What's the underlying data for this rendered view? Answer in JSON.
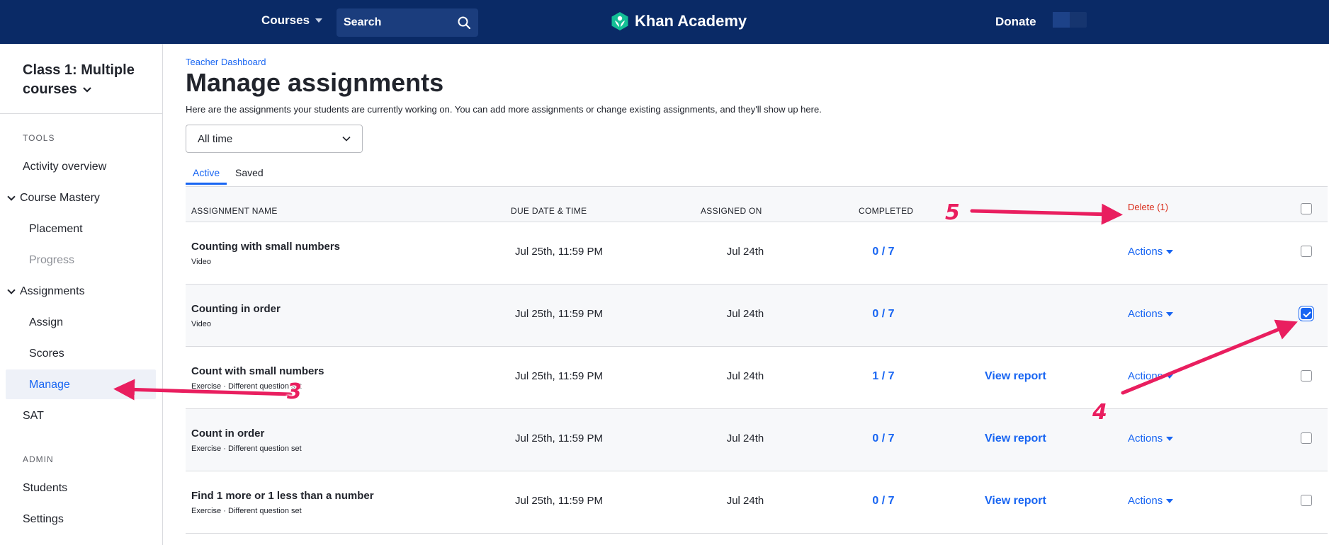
{
  "nav": {
    "courses_label": "Courses",
    "search_label": "Search",
    "brand": "Khan Academy",
    "donate_label": "Donate"
  },
  "sidebar": {
    "class_title": "Class 1: Multiple courses",
    "tools_heading": "TOOLS",
    "activity_overview": "Activity overview",
    "course_mastery": "Course Mastery",
    "placement": "Placement",
    "progress": "Progress",
    "assignments": "Assignments",
    "assign": "Assign",
    "scores": "Scores",
    "manage": "Manage",
    "sat": "SAT",
    "admin_heading": "ADMIN",
    "students": "Students",
    "settings": "Settings"
  },
  "main": {
    "breadcrumb": "Teacher Dashboard",
    "title": "Manage assignments",
    "description": "Here are the assignments your students are currently working on. You can add more assignments or change existing assignments, and they'll show up here.",
    "time_filter": "All time",
    "tabs": [
      "Active",
      "Saved"
    ],
    "columns": {
      "name": "Assignment name",
      "due": "Due date & time",
      "assigned": "Assigned on",
      "completed": "Completed"
    },
    "delete_label": "Delete (1)",
    "actions_label": "Actions",
    "view_report_label": "View report",
    "rows": [
      {
        "name": "Counting with small numbers",
        "type": "Video",
        "due": "Jul 25th, 11:59 PM",
        "assigned": "Jul 24th",
        "completed": "0 / 7"
      },
      {
        "name": "Counting in order",
        "type": "Video",
        "due": "Jul 25th, 11:59 PM",
        "assigned": "Jul 24th",
        "completed": "0 / 7"
      },
      {
        "name": "Count with small numbers",
        "type": "Exercise · Different question set",
        "due": "Jul 25th, 11:59 PM",
        "assigned": "Jul 24th",
        "completed": "1 / 7"
      },
      {
        "name": "Count in order",
        "type": "Exercise · Different question set",
        "due": "Jul 25th, 11:59 PM",
        "assigned": "Jul 24th",
        "completed": "0 / 7"
      },
      {
        "name": "Find 1 more or 1 less than a number",
        "type": "Exercise · Different question set",
        "due": "Jul 25th, 11:59 PM",
        "assigned": "Jul 24th",
        "completed": "0 / 7"
      }
    ]
  },
  "annotations": {
    "step3": "3",
    "step4": "4",
    "step5": "5"
  },
  "colors": {
    "nav_bg": "#0a2a66",
    "accent": "#1865f2",
    "delete": "#d92916",
    "annotation": "#e91e5f",
    "logo": "#14bf96"
  }
}
